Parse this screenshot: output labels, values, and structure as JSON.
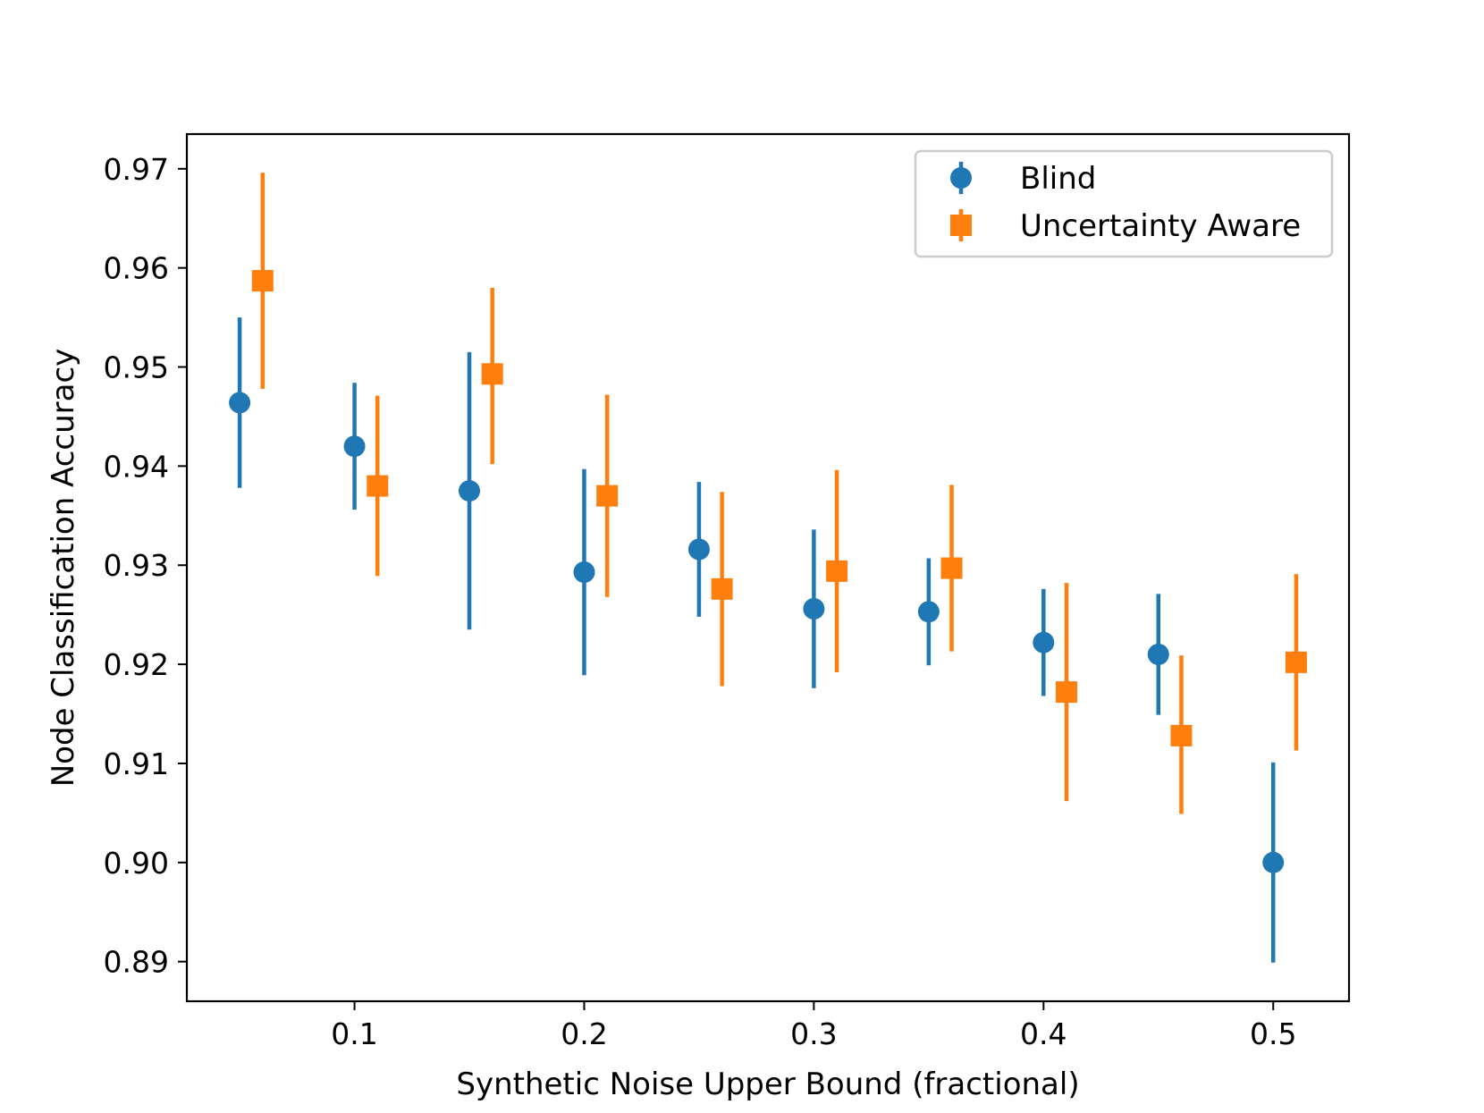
{
  "chart_data": {
    "type": "scatter",
    "title": "",
    "xlabel": "Synthetic Noise Upper Bound (fractional)",
    "ylabel": "Node Classification Accuracy",
    "xlim": [
      0.027,
      0.533
    ],
    "ylim": [
      0.886,
      0.9735
    ],
    "xticks": [
      0.1,
      0.2,
      0.3,
      0.4,
      0.5
    ],
    "xtick_labels": [
      "0.1",
      "0.2",
      "0.3",
      "0.4",
      "0.5"
    ],
    "yticks": [
      0.89,
      0.9,
      0.91,
      0.92,
      0.93,
      0.94,
      0.95,
      0.96,
      0.97
    ],
    "ytick_labels": [
      "0.89",
      "0.90",
      "0.91",
      "0.92",
      "0.93",
      "0.94",
      "0.95",
      "0.96",
      "0.97"
    ],
    "grid": false,
    "legend_position": "top-right",
    "series": [
      {
        "name": "Blind",
        "color": "#1f77b4",
        "marker": "circle",
        "x": [
          0.05,
          0.1,
          0.15,
          0.2,
          0.25,
          0.3,
          0.35,
          0.4,
          0.45,
          0.5
        ],
        "y": [
          0.9464,
          0.942,
          0.9375,
          0.9293,
          0.9316,
          0.9256,
          0.9253,
          0.9222,
          0.921,
          0.9
        ],
        "err_low": [
          0.9378,
          0.9356,
          0.9235,
          0.9189,
          0.9248,
          0.9176,
          0.9199,
          0.9168,
          0.9149,
          0.8899
        ],
        "err_high": [
          0.955,
          0.9484,
          0.9515,
          0.9397,
          0.9384,
          0.9336,
          0.9307,
          0.9276,
          0.9271,
          0.9101
        ]
      },
      {
        "name": "Uncertainty Aware",
        "color": "#ff7f0e",
        "marker": "square",
        "x": [
          0.06,
          0.11,
          0.16,
          0.21,
          0.26,
          0.31,
          0.36,
          0.41,
          0.46,
          0.51
        ],
        "y": [
          0.9587,
          0.938,
          0.9493,
          0.937,
          0.9276,
          0.9294,
          0.9297,
          0.9172,
          0.9128,
          0.9202
        ],
        "err_low": [
          0.9478,
          0.9289,
          0.9402,
          0.9268,
          0.9178,
          0.9192,
          0.9213,
          0.9062,
          0.9049,
          0.9113
        ],
        "err_high": [
          0.9696,
          0.9471,
          0.958,
          0.9472,
          0.9374,
          0.9396,
          0.9381,
          0.9282,
          0.9209,
          0.9291
        ]
      }
    ]
  }
}
